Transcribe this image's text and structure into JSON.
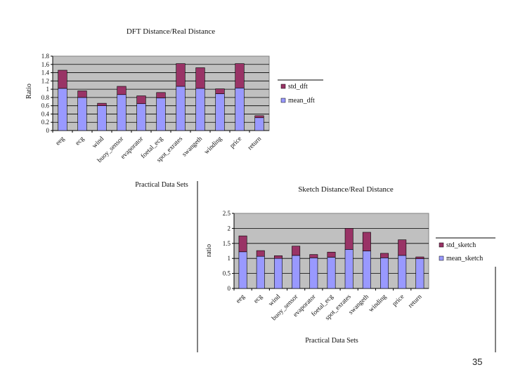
{
  "page": {
    "number": "35"
  },
  "colors": {
    "mean": "#9999ff",
    "std": "#993366",
    "plot_bg": "#c0c0c0",
    "grid": "#000000"
  },
  "chart_data": [
    {
      "type": "bar",
      "stacked": true,
      "title": "DFT Distance/Real Distance",
      "xlabel": "Practical Data Sets",
      "ylabel": "Ratio",
      "ylim": [
        0,
        1.8
      ],
      "yticks": [
        "0",
        "0.2",
        "0.4",
        "0.6",
        "0.8",
        "1",
        "1.2",
        "1.4",
        "1.6",
        "1.8"
      ],
      "categories": [
        "eeg",
        "ecg",
        "wind",
        "buoy_sensor",
        "evaporator",
        "foetal_ecg",
        "spot_exrates",
        "swangeth",
        "winding",
        "price",
        "return"
      ],
      "grid": true,
      "legend_placement": "right",
      "series": [
        {
          "name": "mean_dft",
          "values": [
            1.02,
            0.8,
            0.6,
            0.87,
            0.65,
            0.79,
            1.07,
            1.02,
            0.89,
            1.03,
            0.31
          ]
        },
        {
          "name": "std_dft",
          "values": [
            0.44,
            0.16,
            0.06,
            0.2,
            0.19,
            0.13,
            0.55,
            0.5,
            0.12,
            0.59,
            0.05
          ]
        }
      ]
    },
    {
      "type": "bar",
      "stacked": true,
      "title": "Sketch Distance/Real Distance",
      "xlabel": "Practical Data Sets",
      "ylabel": "ratio",
      "ylim": [
        0,
        2.5
      ],
      "yticks": [
        "0",
        "0.5",
        "1",
        "1.5",
        "2",
        "2.5"
      ],
      "categories": [
        "eeg",
        "ecg",
        "wind",
        "buoy_sensor",
        "evaporator",
        "foetal_ecg",
        "spot_exrates",
        "swangeth",
        "winding",
        "price",
        "return"
      ],
      "grid": true,
      "legend_placement": "right",
      "series": [
        {
          "name": "mean_sketch",
          "values": [
            1.22,
            1.07,
            1.0,
            1.1,
            1.02,
            1.04,
            1.3,
            1.25,
            1.02,
            1.1,
            0.99
          ]
        },
        {
          "name": "std_sketch",
          "values": [
            0.53,
            0.19,
            0.09,
            0.31,
            0.11,
            0.17,
            0.7,
            0.62,
            0.15,
            0.52,
            0.06
          ]
        }
      ]
    }
  ]
}
